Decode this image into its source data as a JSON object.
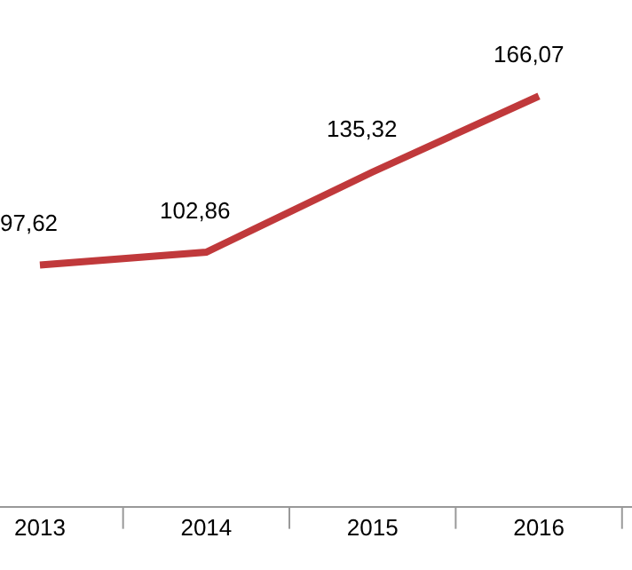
{
  "chart_data": {
    "type": "line",
    "categories": [
      "2013",
      "2014",
      "2015",
      "2016"
    ],
    "series": [
      {
        "color": "#c0393b",
        "values": [
          97.62,
          102.86,
          135.32,
          166.07
        ],
        "value_labels": [
          "97,62",
          "102,86",
          "135,32",
          "166,07"
        ]
      }
    ],
    "ylim": [
      0,
      205
    ],
    "tick_labels": "x",
    "marker": "none",
    "line_style": "solid"
  }
}
